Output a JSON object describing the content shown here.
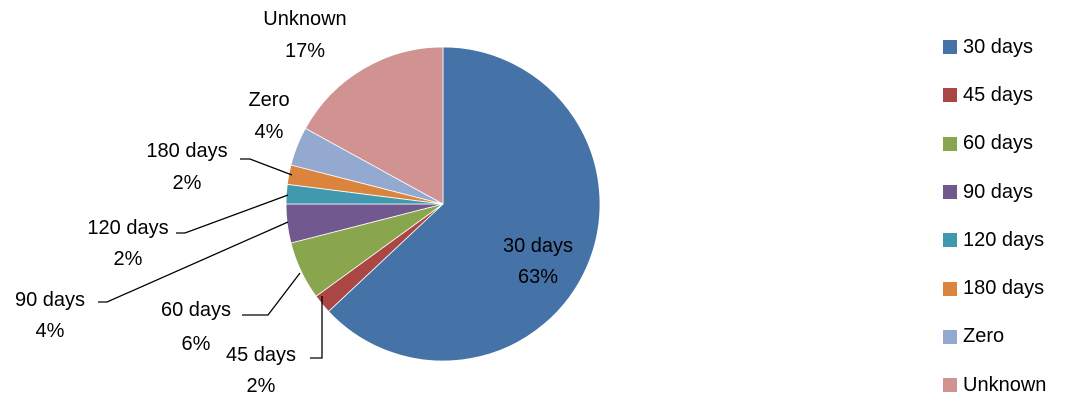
{
  "chart_data": {
    "type": "pie",
    "title": "",
    "slices": [
      {
        "name": "30 days",
        "pct": 63,
        "pct_label": "63%",
        "color": "#4572A7"
      },
      {
        "name": "45 days",
        "pct": 2,
        "pct_label": "2%",
        "color": "#AA4643"
      },
      {
        "name": "60 days",
        "pct": 6,
        "pct_label": "6%",
        "color": "#89A54E"
      },
      {
        "name": "90 days",
        "pct": 4,
        "pct_label": "4%",
        "color": "#71588F"
      },
      {
        "name": "120 days",
        "pct": 2,
        "pct_label": "2%",
        "color": "#4198AF"
      },
      {
        "name": "180 days",
        "pct": 2,
        "pct_label": "2%",
        "color": "#DB843D"
      },
      {
        "name": "Zero",
        "pct": 4,
        "pct_label": "4%",
        "color": "#93A9CF"
      },
      {
        "name": "Unknown",
        "pct": 17,
        "pct_label": "17%",
        "color": "#D19392"
      }
    ],
    "start": "12 o'clock",
    "direction": "clockwise",
    "legend_position": "right"
  }
}
